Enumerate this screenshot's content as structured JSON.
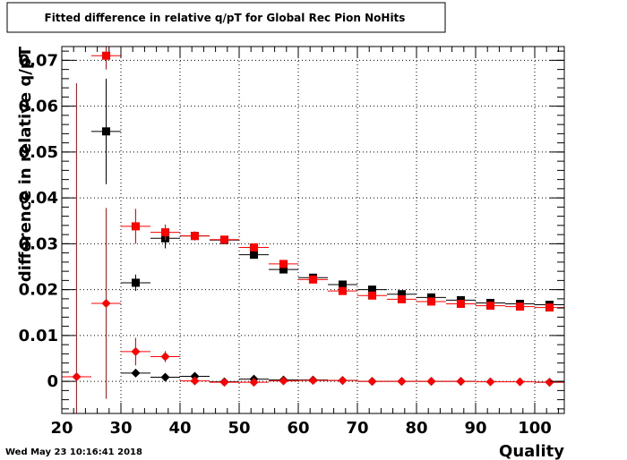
{
  "chart_data": {
    "type": "scatter",
    "title": "Fitted difference in relative q/pT for Global Rec Pion NoHits",
    "xlabel": "Quality",
    "ylabel": "difference in relative q/pT",
    "timestamp": "Wed May 23 10:16:41 2018",
    "xlim": [
      20,
      105
    ],
    "ylim": [
      -0.007,
      0.073
    ],
    "grid": true,
    "legend": "none",
    "x_ticks": [
      20,
      30,
      40,
      50,
      60,
      70,
      80,
      90,
      100
    ],
    "x_tick_labels": [
      "20",
      "30",
      "40",
      "50",
      "60",
      "70",
      "80",
      "90",
      "100"
    ],
    "y_ticks": [
      0,
      0.01,
      0.02,
      0.03,
      0.04,
      0.05,
      0.06,
      0.07
    ],
    "y_tick_labels": [
      "0",
      "0.01",
      "0.02",
      "0.03",
      "0.04",
      "0.05",
      "0.06",
      "0.07"
    ],
    "series": [
      {
        "marker": "square",
        "color": "#000000",
        "x_halfwidth": 2.5,
        "points": [
          {
            "x": 27.5,
            "y": 0.0545,
            "err": 0.0115
          },
          {
            "x": 32.5,
            "y": 0.0215,
            "err": 0.0018
          },
          {
            "x": 37.5,
            "y": 0.0312,
            "err": 0.0022
          },
          {
            "x": 42.5,
            "y": 0.0317,
            "err": 0.0008
          },
          {
            "x": 47.5,
            "y": 0.0308,
            "err": 0.0005
          },
          {
            "x": 52.5,
            "y": 0.0276,
            "err": 0.0005
          },
          {
            "x": 57.5,
            "y": 0.0244,
            "err": 0.0004
          },
          {
            "x": 62.5,
            "y": 0.0226,
            "err": 0.0003
          },
          {
            "x": 67.5,
            "y": 0.0211,
            "err": 0.0003
          },
          {
            "x": 72.5,
            "y": 0.02,
            "err": 0.0002
          },
          {
            "x": 77.5,
            "y": 0.019,
            "err": 0.0002
          },
          {
            "x": 82.5,
            "y": 0.0183,
            "err": 0.0002
          },
          {
            "x": 87.5,
            "y": 0.0177,
            "err": 0.0002
          },
          {
            "x": 92.5,
            "y": 0.0171,
            "err": 0.0002
          },
          {
            "x": 97.5,
            "y": 0.0169,
            "err": 0.0002
          },
          {
            "x": 102.5,
            "y": 0.0167,
            "err": 0.0002
          }
        ]
      },
      {
        "marker": "square",
        "color": "#ff0000",
        "x_halfwidth": 2.5,
        "points": [
          {
            "x": 27.5,
            "y": 0.071,
            "err": 0.003
          },
          {
            "x": 32.5,
            "y": 0.0338,
            "err": 0.0038
          },
          {
            "x": 37.5,
            "y": 0.0325,
            "err": 0.0017
          },
          {
            "x": 42.5,
            "y": 0.0317,
            "err": 0.001
          },
          {
            "x": 47.5,
            "y": 0.0309,
            "err": 0.0006
          },
          {
            "x": 52.5,
            "y": 0.0292,
            "err": 0.0005
          },
          {
            "x": 57.5,
            "y": 0.0256,
            "err": 0.0004
          },
          {
            "x": 62.5,
            "y": 0.0222,
            "err": 0.0003
          },
          {
            "x": 67.5,
            "y": 0.0197,
            "err": 0.0003
          },
          {
            "x": 72.5,
            "y": 0.0187,
            "err": 0.0002
          },
          {
            "x": 77.5,
            "y": 0.0179,
            "err": 0.0002
          },
          {
            "x": 82.5,
            "y": 0.0174,
            "err": 0.0002
          },
          {
            "x": 87.5,
            "y": 0.0169,
            "err": 0.0002
          },
          {
            "x": 92.5,
            "y": 0.0165,
            "err": 0.0002
          },
          {
            "x": 97.5,
            "y": 0.0163,
            "err": 0.0002
          },
          {
            "x": 102.5,
            "y": 0.0161,
            "err": 0.0002
          }
        ]
      },
      {
        "marker": "diamond",
        "color": "#000000",
        "x_halfwidth": 2.5,
        "points": [
          {
            "x": 32.5,
            "y": 0.0018,
            "err": 0.0008
          },
          {
            "x": 37.5,
            "y": 0.0009,
            "err": 0.0005
          },
          {
            "x": 42.5,
            "y": 0.0011,
            "err": 0.0004
          },
          {
            "x": 47.5,
            "y": -0.0001,
            "err": 0.0002
          },
          {
            "x": 52.5,
            "y": 0.0005,
            "err": 0.0002
          },
          {
            "x": 57.5,
            "y": 0.0003,
            "err": 0.0002
          },
          {
            "x": 62.5,
            "y": 0.0003,
            "err": 0.0001
          },
          {
            "x": 67.5,
            "y": 0.0002,
            "err": 0.0001
          },
          {
            "x": 72.5,
            "y": 0.0,
            "err": 0.0001
          },
          {
            "x": 77.5,
            "y": 0.0,
            "err": 0.0001
          },
          {
            "x": 82.5,
            "y": 0.0,
            "err": 0.0001
          },
          {
            "x": 87.5,
            "y": 0.0,
            "err": 0.0001
          },
          {
            "x": 102.5,
            "y": -0.0002,
            "err": 0.0001
          }
        ]
      },
      {
        "marker": "diamond",
        "color": "#ff0000",
        "x_halfwidth": 2.5,
        "points": [
          {
            "x": 22.5,
            "y": 0.001,
            "err": 0.064
          },
          {
            "x": 27.5,
            "y": 0.017,
            "err": 0.0208
          },
          {
            "x": 32.5,
            "y": 0.0065,
            "err": 0.003
          },
          {
            "x": 37.5,
            "y": 0.0054,
            "err": 0.0012
          },
          {
            "x": 42.5,
            "y": 0.0001,
            "err": 0.0004
          },
          {
            "x": 47.5,
            "y": -0.0002,
            "err": 0.0002
          },
          {
            "x": 52.5,
            "y": -0.0002,
            "err": 0.0002
          },
          {
            "x": 57.5,
            "y": 0.0001,
            "err": 0.0002
          },
          {
            "x": 62.5,
            "y": 0.0002,
            "err": 0.0001
          },
          {
            "x": 67.5,
            "y": 0.0002,
            "err": 0.0001
          },
          {
            "x": 72.5,
            "y": 0.0,
            "err": 0.0001
          },
          {
            "x": 77.5,
            "y": 0.0,
            "err": 0.0001
          },
          {
            "x": 82.5,
            "y": 0.0,
            "err": 0.0001
          },
          {
            "x": 87.5,
            "y": 0.0,
            "err": 0.0001
          },
          {
            "x": 92.5,
            "y": -0.0001,
            "err": 0.0001
          },
          {
            "x": 97.5,
            "y": -0.0001,
            "err": 0.0001
          },
          {
            "x": 102.5,
            "y": -0.0002,
            "err": 0.0001
          }
        ]
      }
    ]
  }
}
